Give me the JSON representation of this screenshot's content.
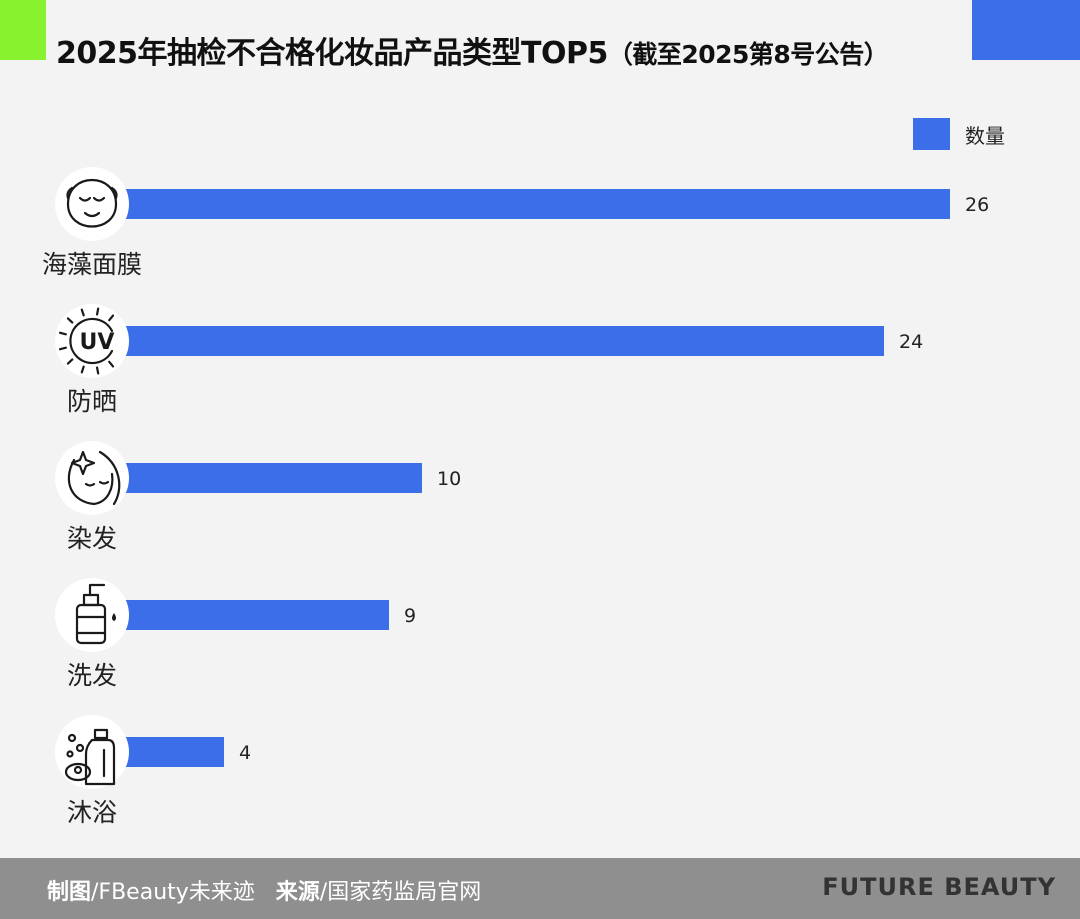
{
  "header": {
    "title_main": "2025年抽检不合格化妆品产品类型TOP5",
    "title_paren": "（截至2025第8号公告）"
  },
  "legend": {
    "label": "数量",
    "color": "#3b6ee8"
  },
  "chart_data": {
    "type": "bar",
    "orientation": "horizontal",
    "title": "2025年抽检不合格化妆品产品类型TOP5（截至2025第8号公告）",
    "categories": [
      "海藻面膜",
      "防晒",
      "染发",
      "洗发",
      "沐浴"
    ],
    "series": [
      {
        "name": "数量",
        "values": [
          26,
          24,
          10,
          9,
          4
        ]
      }
    ],
    "icons": [
      "face-mask-icon",
      "uv-sun-icon",
      "hair-dye-face-icon",
      "shampoo-bottle-icon",
      "bath-bottle-soap-icon"
    ],
    "data_labels": true,
    "legend_position": "top-right",
    "grid": false,
    "xlim": [
      0,
      26
    ],
    "bar_color": "#3b6ee8"
  },
  "footer": {
    "maker_label": "制图",
    "maker_value": "/FBeauty未来迹",
    "source_label": "来源",
    "source_value": "/国家药监局官网",
    "brand": "FUTURE BEAUTY"
  }
}
